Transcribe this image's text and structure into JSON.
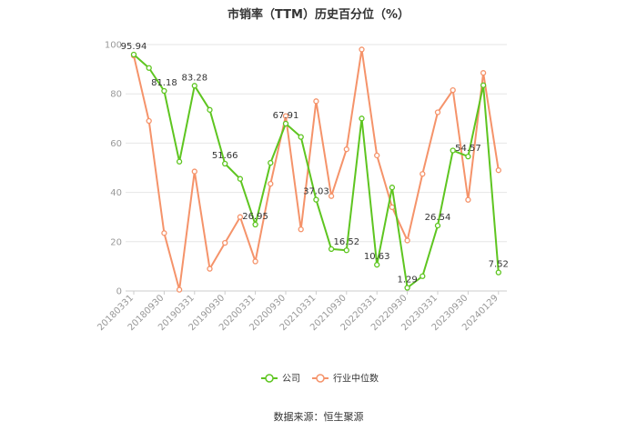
{
  "title": "市销率（TTM）历史百分位（%）",
  "source": "数据来源：恒生聚源",
  "chart_data": {
    "type": "line",
    "title": "市销率（TTM）历史百分位（%）",
    "ylim": [
      0,
      100
    ],
    "yticks": [
      "0",
      "20",
      "40",
      "60",
      "80",
      "100"
    ],
    "x_tick_labels": [
      "20180331",
      "20180930",
      "20190331",
      "20190930",
      "20200331",
      "20200930",
      "20210331",
      "20210930",
      "20220331",
      "20220930",
      "20230331",
      "20230930",
      "20240129"
    ],
    "grid": true,
    "legend_position": "bottom",
    "series": [
      {
        "name": "公司",
        "color": "#5ec520",
        "values": [
          95.94,
          90.5,
          81.18,
          52.5,
          83.28,
          73.5,
          51.66,
          45.5,
          26.95,
          52.0,
          67.91,
          62.5,
          37.03,
          17.0,
          16.52,
          70.0,
          10.63,
          42.0,
          1.29,
          6.0,
          26.54,
          57.0,
          54.57,
          83.5,
          7.52
        ],
        "labels": [
          "95.94",
          "",
          "81.18",
          "",
          "83.28",
          "",
          "51.66",
          "",
          "26.95",
          "",
          "67.91",
          "",
          "37.03",
          "",
          "16.52",
          "",
          "10.63",
          "",
          "1.29",
          "",
          "26.54",
          "",
          "54.57",
          "",
          "7.52"
        ]
      },
      {
        "name": "行业中位数",
        "color": "#f5936a",
        "values": [
          95.5,
          69.0,
          23.5,
          0.5,
          48.5,
          9.0,
          19.5,
          30.0,
          12.0,
          43.5,
          71.0,
          25.0,
          77.0,
          38.5,
          57.5,
          98.0,
          55.0,
          34.0,
          20.5,
          47.5,
          72.5,
          81.5,
          37.0,
          88.5,
          49.0
        ],
        "labels": []
      }
    ]
  }
}
